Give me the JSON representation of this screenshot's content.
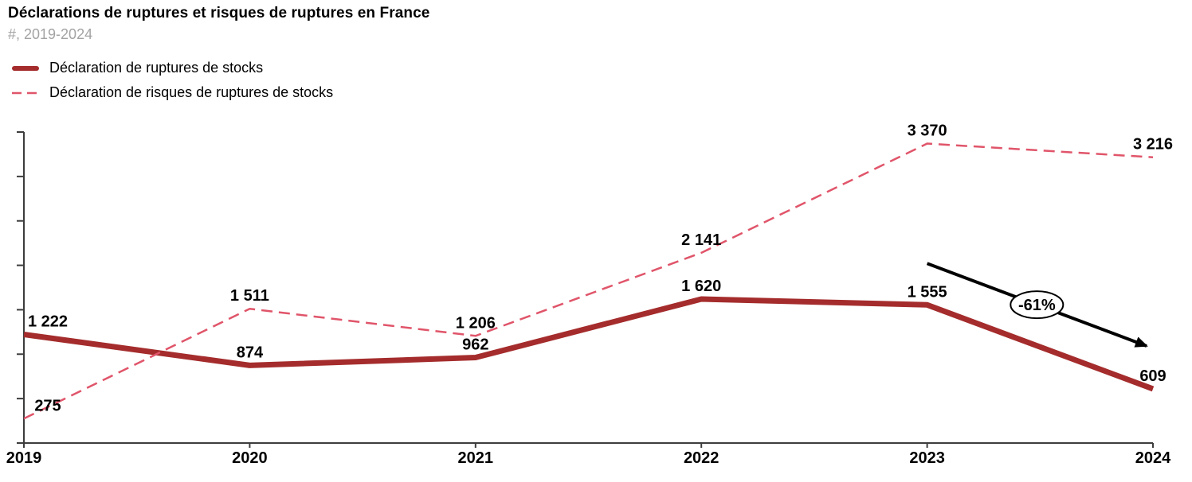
{
  "header": {
    "title": "Déclarations de ruptures et risques de ruptures en France",
    "subtitle": "#, 2019-2024"
  },
  "legend": {
    "items": [
      {
        "label": "Déclaration de ruptures de stocks",
        "style": "solid",
        "color": "#A52C2C"
      },
      {
        "label": "Déclaration de risques de ruptures de stocks",
        "style": "dashed",
        "color": "#E0556A"
      }
    ]
  },
  "chart_data": {
    "type": "line",
    "title": "Déclarations de ruptures et risques de ruptures en France",
    "subtitle": "#, 2019-2024",
    "x": [
      2019,
      2020,
      2021,
      2022,
      2023,
      2024
    ],
    "x_labels": [
      "2019",
      "2020",
      "2021",
      "2022",
      "2023",
      "2024"
    ],
    "series": [
      {
        "name": "Déclaration de ruptures de stocks",
        "style": "solid",
        "color": "#A52C2C",
        "values": [
          1222,
          874,
          962,
          1620,
          1555,
          609
        ],
        "value_labels": [
          "1 222",
          "874",
          "962",
          "1 620",
          "1 555",
          "609"
        ]
      },
      {
        "name": "Déclaration de risques de ruptures de stocks",
        "style": "dashed",
        "color": "#E0556A",
        "values": [
          275,
          1511,
          1206,
          2141,
          3370,
          3216
        ],
        "value_labels": [
          "275",
          "1 511",
          "1 206",
          "2 141",
          "3 370",
          "3 216"
        ]
      }
    ],
    "ylim": [
      0,
      3500
    ],
    "ytick_step": 500,
    "ytick_labels_shown": false,
    "grid": false,
    "legend_position": "top-left",
    "annotation": {
      "text": "-61%",
      "series": "Déclaration de ruptures de stocks",
      "from_x": 2023,
      "to_x": 2024
    }
  },
  "colors": {
    "axis": "#3C3C3C",
    "data_label": "#000000",
    "annotation": "#000000",
    "background": "#FFFFFF"
  }
}
